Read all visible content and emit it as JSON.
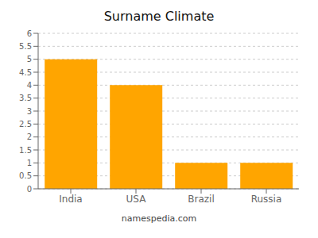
{
  "chart_data": {
    "type": "bar",
    "title": "Surname Climate",
    "categories": [
      "India",
      "USA",
      "Brazil",
      "Russia"
    ],
    "values": [
      5.0,
      4.0,
      1.0,
      1.0
    ],
    "color": "#FFA500",
    "ylim": [
      0,
      6
    ],
    "yticks": [
      0,
      0.5,
      1,
      1.5,
      2,
      2.5,
      3,
      3.5,
      4,
      4.5,
      5,
      5.5,
      6
    ],
    "grid": true,
    "annotations": [
      "namespedia.com"
    ]
  }
}
